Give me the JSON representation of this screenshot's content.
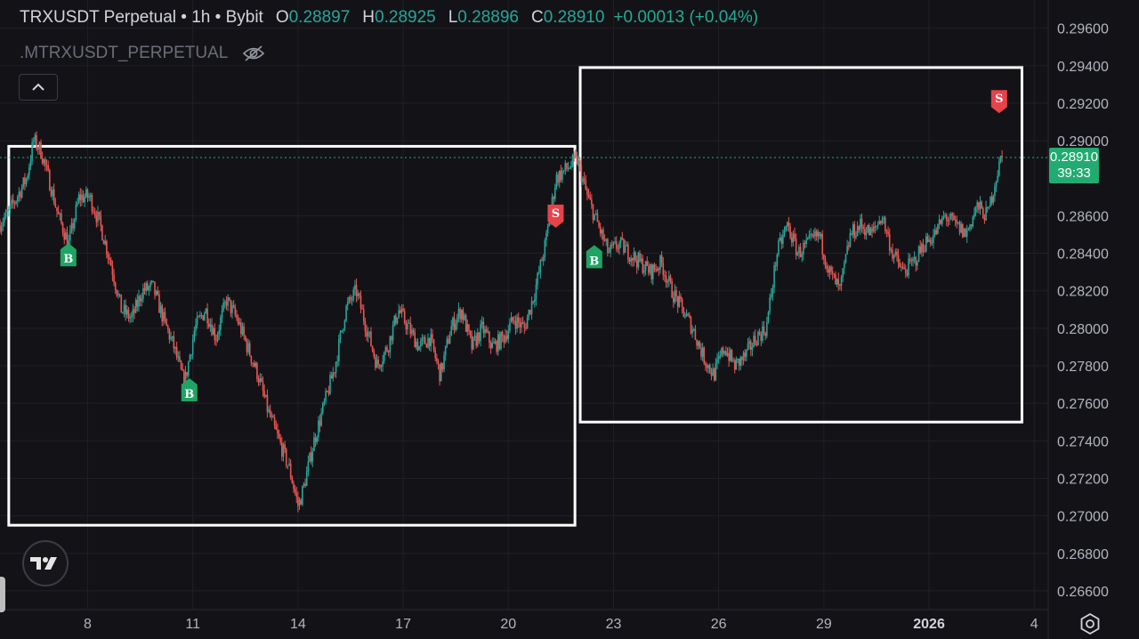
{
  "header": {
    "symbol": "TRXUSDT Perpetual",
    "sep1": " • ",
    "interval": "1h",
    "sep2": " • ",
    "exchange": "Bybit",
    "o_label": "O",
    "o_value": "0.28897",
    "h_label": "H",
    "h_value": "0.28925",
    "l_label": "L",
    "l_value": "0.28896",
    "c_label": "C",
    "c_value": "0.28910",
    "change": "+0.00013 (+0.04%)"
  },
  "sub_title": ".MTRXUSDT_PERPETUAL",
  "current_price": {
    "price": "0.28910",
    "countdown": "39:33"
  },
  "colors": {
    "background": "#131317",
    "up": "#26a69a",
    "down": "#ef5350",
    "buy": "#1fa463",
    "sell": "#e8424a",
    "box": "#ffffff",
    "grid": "#1f1f25"
  },
  "icons": {
    "eye": "eye-off-icon",
    "collapse": "chevron-up-icon",
    "logo": "tradingview-logo-icon",
    "settings": "gear-icon"
  },
  "chart_data": {
    "type": "candlestick",
    "ylim": [
      0.265,
      0.2975
    ],
    "y_ticks": [
      "0.29600",
      "0.29400",
      "0.29200",
      "0.29000",
      "0.28600",
      "0.28400",
      "0.28200",
      "0.28000",
      "0.27800",
      "0.27600",
      "0.27400",
      "0.27200",
      "0.27000",
      "0.26800",
      "0.26600"
    ],
    "x_ticks": [
      "8",
      "11",
      "14",
      "17",
      "20",
      "23",
      "26",
      "29",
      "2026",
      "4"
    ],
    "x_tick_days": [
      8,
      11,
      14,
      17,
      20,
      23,
      26,
      29,
      32,
      35
    ],
    "xlim_days": [
      5.5,
      35.4
    ],
    "path_days": [
      5.5,
      5.8,
      6.3,
      6.5,
      6.7,
      7.0,
      7.2,
      7.5,
      7.8,
      8.1,
      8.4,
      8.7,
      9.0,
      9.3,
      9.6,
      9.9,
      10.2,
      10.5,
      10.8,
      11.1,
      11.4,
      11.7,
      12.0,
      12.3,
      12.6,
      12.9,
      13.2,
      13.5,
      13.8,
      14.05,
      14.2,
      14.5,
      14.8,
      15.1,
      15.4,
      15.7,
      16.0,
      16.3,
      16.6,
      16.9,
      17.2,
      17.5,
      17.8,
      18.1,
      18.4,
      18.7,
      19.0,
      19.3,
      19.6,
      19.9,
      20.2,
      20.5,
      20.8,
      21.1,
      21.4,
      21.7,
      22.0,
      22.3,
      22.6,
      22.9,
      23.2,
      23.5,
      23.8,
      24.1,
      24.4,
      24.7,
      25.0,
      25.3,
      25.6,
      25.9,
      26.2,
      26.5,
      26.8,
      27.1,
      27.4,
      27.7,
      28.0,
      28.3,
      28.6,
      28.9,
      29.2,
      29.5,
      29.8,
      30.1,
      30.4,
      30.7,
      31.0,
      31.3,
      31.6,
      31.9,
      32.2,
      32.5,
      32.8,
      33.1,
      33.4,
      33.7,
      33.95,
      34.1
    ],
    "path_prices": [
      0.2855,
      0.2862,
      0.288,
      0.29,
      0.2895,
      0.2875,
      0.286,
      0.2845,
      0.287,
      0.287,
      0.2855,
      0.2835,
      0.281,
      0.2805,
      0.282,
      0.2822,
      0.2805,
      0.279,
      0.277,
      0.28,
      0.281,
      0.2795,
      0.2815,
      0.2805,
      0.279,
      0.2775,
      0.2755,
      0.274,
      0.2725,
      0.2705,
      0.2715,
      0.274,
      0.276,
      0.278,
      0.281,
      0.282,
      0.28,
      0.278,
      0.279,
      0.281,
      0.28,
      0.279,
      0.2795,
      0.2775,
      0.28,
      0.281,
      0.279,
      0.28,
      0.279,
      0.2795,
      0.2805,
      0.28,
      0.282,
      0.2845,
      0.288,
      0.2885,
      0.289,
      0.287,
      0.2855,
      0.284,
      0.2845,
      0.284,
      0.2835,
      0.283,
      0.2835,
      0.282,
      0.281,
      0.28,
      0.2785,
      0.2775,
      0.279,
      0.278,
      0.2785,
      0.2795,
      0.28,
      0.284,
      0.2855,
      0.284,
      0.2845,
      0.285,
      0.283,
      0.282,
      0.285,
      0.2855,
      0.285,
      0.286,
      0.284,
      0.283,
      0.2835,
      0.2845,
      0.285,
      0.286,
      0.2855,
      0.285,
      0.2865,
      0.286,
      0.288,
      0.2891
    ],
    "markers": [
      {
        "type": "buy",
        "label": "B",
        "day": 7.45,
        "price": 0.2843
      },
      {
        "type": "buy",
        "label": "B",
        "day": 10.9,
        "price": 0.2771
      },
      {
        "type": "sell",
        "label": "S",
        "day": 21.35,
        "price": 0.2856
      },
      {
        "type": "buy",
        "label": "B",
        "day": 22.45,
        "price": 0.2842
      },
      {
        "type": "sell",
        "label": "S",
        "day": 34.0,
        "price": 0.2917
      }
    ],
    "boxes": [
      {
        "day_start": 5.75,
        "day_end": 21.9,
        "price_top": 0.2897,
        "price_bottom": 0.2695
      },
      {
        "day_start": 22.05,
        "day_end": 34.65,
        "price_top": 0.2939,
        "price_bottom": 0.275
      }
    ],
    "last_price": 0.2891
  }
}
